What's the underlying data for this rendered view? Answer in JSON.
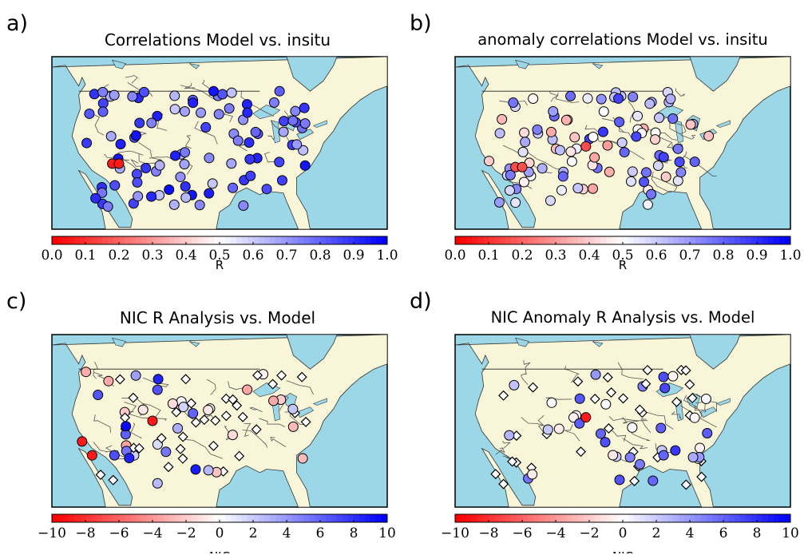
{
  "panels": [
    {
      "letter": "a)",
      "title": "Correlations Model vs. insitu",
      "cbar_label": "R",
      "ticks": [
        "0.0",
        "0.1",
        "0.2",
        "0.3",
        "0.4",
        "0.5",
        "0.6",
        "0.7",
        "0.8",
        "0.9",
        "1.0"
      ],
      "range": [
        0,
        1
      ]
    },
    {
      "letter": "b)",
      "title": "anomaly correlations Model vs. insitu",
      "cbar_label": "R",
      "ticks": [
        "0.0",
        "0.1",
        "0.2",
        "0.3",
        "0.4",
        "0.5",
        "0.6",
        "0.7",
        "0.8",
        "0.9",
        "1.0"
      ],
      "range": [
        0,
        1
      ]
    },
    {
      "letter": "c)",
      "title": "NIC R Analysis vs. Model",
      "cbar_label": "NIC",
      "ticks": [
        "−10",
        "−8",
        "−6",
        "−4",
        "−2",
        "0",
        "2",
        "4",
        "6",
        "8",
        "10"
      ],
      "range": [
        -10,
        10
      ]
    },
    {
      "letter": "d)",
      "title": "NIC Anomaly R Analysis vs. Model",
      "cbar_label": "NIC",
      "ticks": [
        "−10",
        "−8",
        "−6",
        "−4",
        "−2",
        "0",
        "2",
        "4",
        "6",
        "8",
        "10"
      ],
      "range": [
        -10,
        10
      ]
    }
  ],
  "colors": {
    "ocean": "#9bd7e6",
    "land": "#f8f5d8",
    "low": "#ff0000",
    "mid": "#ffffff",
    "high": "#0000ff"
  }
}
